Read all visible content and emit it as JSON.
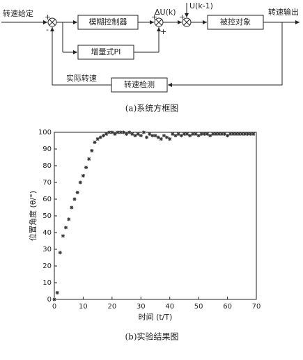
{
  "diagram": {
    "input": "转速给定",
    "fuzzy": "模糊控制器",
    "pi": "增量式PI",
    "plant": "被控对象",
    "sensor": "转速检测",
    "feedback": "实际转速",
    "output": "转速输出",
    "delta_u": "ΔU(k)",
    "u_prev": "U(k-1)",
    "signs": [
      "+",
      "-",
      "+",
      "+",
      "+"
    ],
    "caption": "(a)系统方框图"
  },
  "chart_data": {
    "type": "scatter",
    "xlabel": "时间 (t/T)",
    "ylabel": "位置角度 (θ/°)",
    "caption": "(b)实验结果图",
    "color": "#333333",
    "xlim": [
      0,
      70
    ],
    "ylim": [
      0,
      100
    ],
    "xticks": [
      0,
      10,
      20,
      30,
      40,
      50,
      60,
      70
    ],
    "yticks": [
      0,
      10,
      20,
      30,
      40,
      50,
      60,
      70,
      80,
      90,
      100
    ],
    "x": [
      0,
      1,
      2,
      3,
      4,
      5,
      6,
      7,
      8,
      9,
      10,
      11,
      12,
      13,
      14,
      15,
      16,
      17,
      18,
      19,
      20,
      21,
      22,
      23,
      24,
      25,
      26,
      27,
      28,
      29,
      30,
      31,
      32,
      33,
      34,
      35,
      36,
      37,
      38,
      39,
      40,
      41,
      42,
      43,
      44,
      45,
      46,
      47,
      48,
      49,
      50,
      51,
      52,
      53,
      54,
      55,
      56,
      57,
      58,
      59,
      60,
      61,
      62,
      63,
      64,
      65,
      66,
      67,
      68,
      69
    ],
    "values": [
      0,
      4,
      28,
      38,
      43,
      48,
      55,
      60,
      64,
      70,
      74,
      79,
      84,
      89,
      94,
      96,
      97,
      98,
      99,
      100,
      100,
      99,
      100,
      100,
      100,
      99,
      100,
      99,
      98,
      99,
      98,
      100,
      97,
      99,
      98,
      98,
      97,
      96,
      98,
      97,
      96,
      99,
      98,
      99,
      98,
      99,
      99,
      98,
      99,
      99,
      98,
      99,
      99,
      99,
      98,
      99,
      99,
      99,
      99,
      99,
      98,
      99,
      99,
      99,
      99,
      99,
      99,
      99,
      99,
      99
    ]
  }
}
